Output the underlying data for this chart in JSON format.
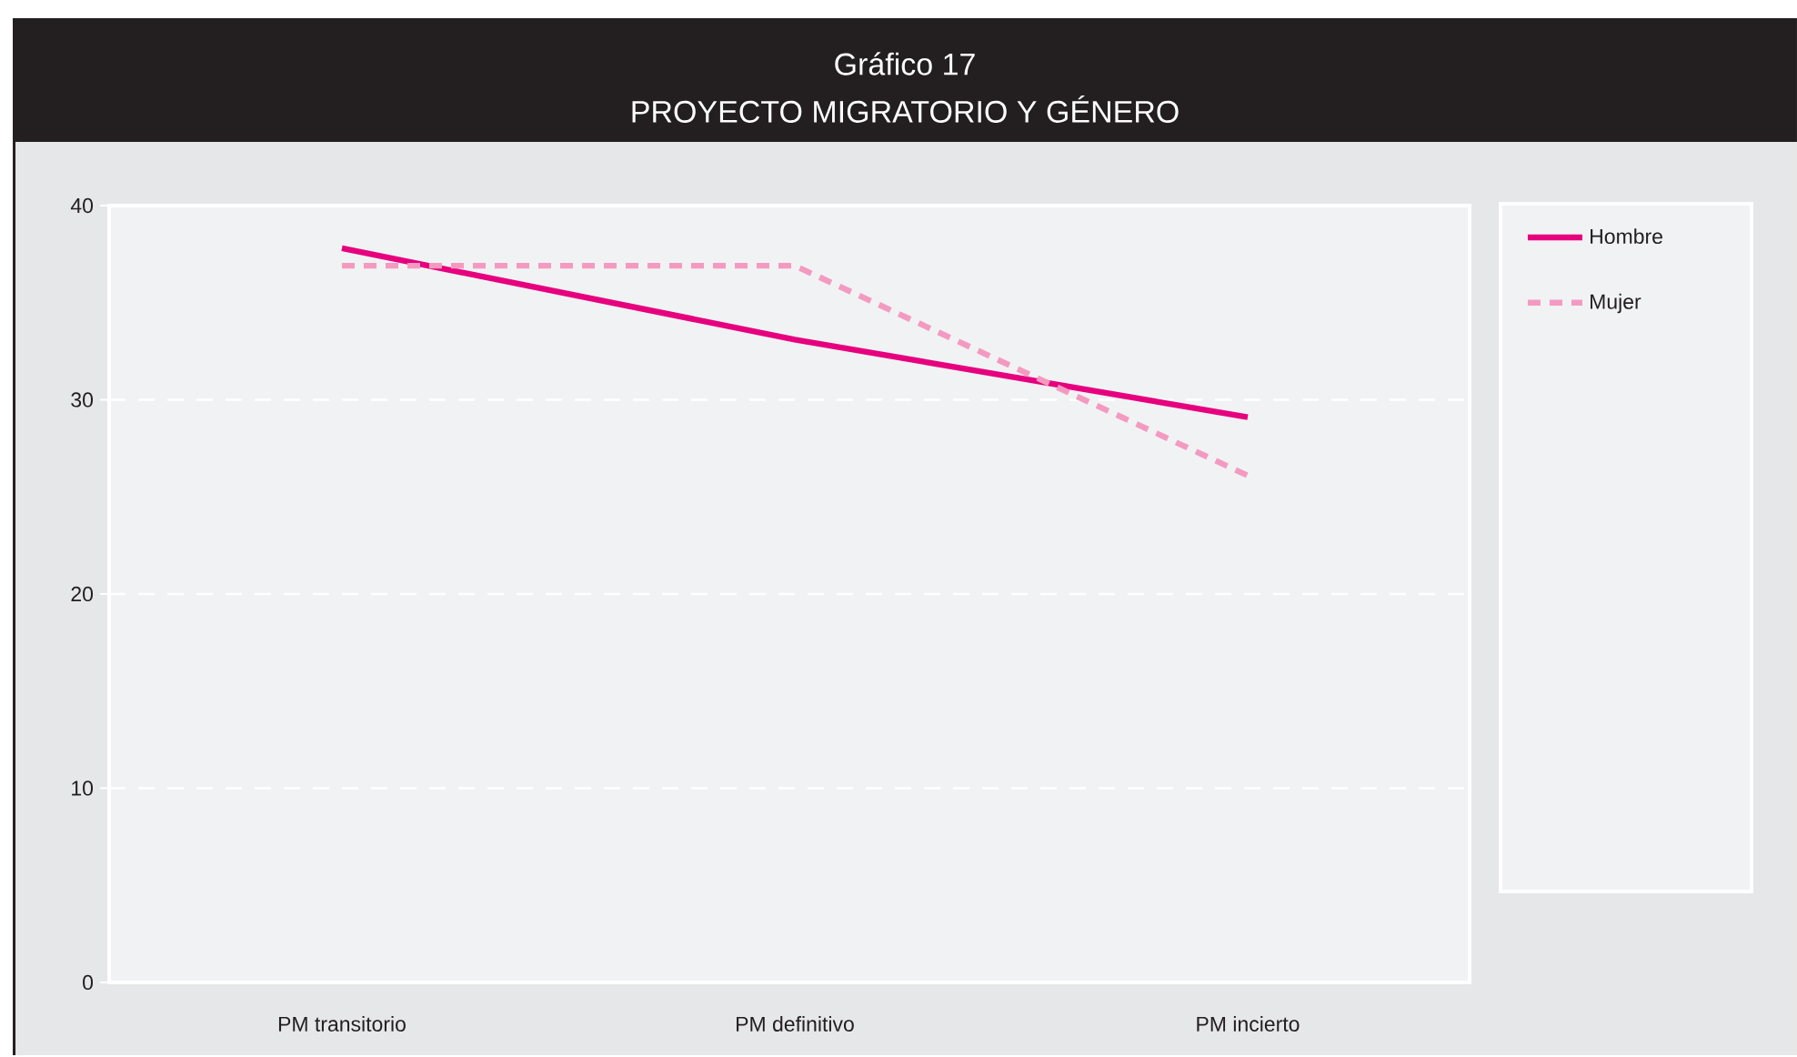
{
  "chart_data": {
    "type": "line",
    "title": "Gráfico 17",
    "subtitle": "PROYECTO MIGRATORIO Y GÉNERO",
    "categories": [
      "PM transitorio",
      "PM definitivo",
      "PM incierto"
    ],
    "series": [
      {
        "name": "Hombre",
        "color": "#e6007e",
        "values": [
          37.8,
          33.1,
          29.1
        ],
        "line_style": "solid"
      },
      {
        "name": "Mujer",
        "color": "#f49ac1",
        "values": [
          36.9,
          36.9,
          26.1
        ],
        "line_style": "dashed"
      }
    ],
    "ylim": [
      0,
      40
    ],
    "yticks": [
      0,
      10,
      20,
      30,
      40
    ],
    "grid": "y",
    "legend": "right"
  }
}
